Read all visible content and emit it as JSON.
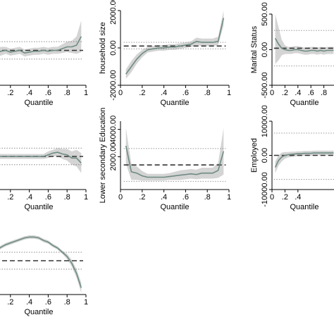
{
  "figure": {
    "xlabel": "Quantile",
    "colors": {
      "estimate": "#6e8b83",
      "band": "#d4d4d4",
      "ols": "#333333",
      "ols_ci": "#888888",
      "frame": "#000000"
    }
  },
  "chart_data": [
    {
      "id": "panel-row1-col1",
      "type": "line",
      "xlabel": "Quantile",
      "ylabel": "",
      "x_ticks": [
        ".2",
        ".4",
        ".6",
        ".8",
        "1"
      ],
      "y_ticks": [],
      "xlim": [
        0,
        1
      ],
      "ylim": [
        -4,
        4
      ],
      "x": [
        0.05,
        0.1,
        0.15,
        0.2,
        0.25,
        0.3,
        0.35,
        0.4,
        0.45,
        0.5,
        0.55,
        0.6,
        0.65,
        0.7,
        0.75,
        0.8,
        0.85,
        0.9,
        0.95
      ],
      "estimate": [
        -0.3,
        -0.1,
        0.0,
        -0.2,
        -0.1,
        0.0,
        -0.3,
        -0.2,
        -0.1,
        -0.1,
        0.0,
        -0.1,
        0.0,
        0.0,
        0.2,
        0.4,
        0.4,
        0.6,
        1.6
      ],
      "ci_lower": [
        -0.8,
        -0.6,
        -0.4,
        -0.6,
        -0.5,
        -0.4,
        -0.7,
        -0.6,
        -0.5,
        -0.5,
        -0.4,
        -0.5,
        -0.4,
        -0.4,
        -0.3,
        -0.2,
        -0.3,
        -0.4,
        -0.2
      ],
      "ci_upper": [
        0.2,
        0.4,
        0.4,
        0.2,
        0.3,
        0.4,
        0.1,
        0.2,
        0.3,
        0.3,
        0.4,
        0.3,
        0.4,
        0.4,
        0.7,
        1.0,
        1.1,
        1.6,
        3.4
      ],
      "ols": 0.0,
      "ols_ci": [
        -1.0,
        1.0
      ]
    },
    {
      "id": "panel-row1-col2",
      "type": "line",
      "xlabel": "Quantile",
      "ylabel": "household size",
      "x_ticks": [
        "0",
        ".2",
        ".4",
        ".6",
        ".8",
        "1"
      ],
      "y_ticks": [
        "-2000.00",
        "0.00",
        "2000.00"
      ],
      "xlim": [
        0,
        1
      ],
      "ylim": [
        -2000,
        2000
      ],
      "x": [
        0.05,
        0.1,
        0.15,
        0.2,
        0.25,
        0.3,
        0.35,
        0.4,
        0.45,
        0.5,
        0.55,
        0.6,
        0.65,
        0.7,
        0.75,
        0.8,
        0.85,
        0.9,
        0.95
      ],
      "estimate": [
        -1400,
        -1000,
        -600,
        -300,
        -100,
        -50,
        0,
        0,
        50,
        50,
        100,
        150,
        200,
        350,
        300,
        300,
        300,
        350,
        1600
      ],
      "ci_lower": [
        -1650,
        -1300,
        -850,
        -500,
        -250,
        -200,
        -150,
        -150,
        -100,
        -100,
        -50,
        0,
        50,
        150,
        100,
        100,
        100,
        150,
        1200
      ],
      "ci_upper": [
        -1150,
        -700,
        -350,
        -100,
        50,
        100,
        150,
        150,
        200,
        200,
        250,
        300,
        350,
        550,
        500,
        500,
        500,
        600,
        2000
      ],
      "ols": 100,
      "ols_ci": [
        -50,
        300
      ]
    },
    {
      "id": "panel-row1-col3",
      "type": "line",
      "xlabel": "Quantile",
      "ylabel": "Marital Status",
      "x_ticks": [
        "0",
        ".2",
        ".4",
        ".6",
        ".8"
      ],
      "y_ticks": [
        "-500.00",
        "0.00",
        "500.00"
      ],
      "xlim": [
        0,
        1
      ],
      "ylim": [
        -500,
        500
      ],
      "x": [
        0.05,
        0.1,
        0.15,
        0.2,
        0.25,
        0.3,
        0.35,
        0.4,
        0.45,
        0.5,
        0.55,
        0.6,
        0.65,
        0.7,
        0.75,
        0.8,
        0.85,
        0.9,
        0.95
      ],
      "estimate": [
        160,
        80,
        20,
        0,
        -10,
        -10,
        0,
        0,
        -10,
        -20,
        -20,
        -10,
        -10,
        -20,
        -10,
        -20,
        -10,
        -10,
        -10
      ],
      "ci_lower": [
        -200,
        -150,
        -80,
        -60,
        -60,
        -60,
        -50,
        -50,
        -60,
        -70,
        -70,
        -60,
        -60,
        -70,
        -60,
        -70,
        -60,
        -60,
        -60
      ],
      "ci_upper": [
        500,
        320,
        140,
        60,
        40,
        40,
        50,
        50,
        40,
        30,
        30,
        40,
        40,
        30,
        40,
        30,
        40,
        40,
        40
      ],
      "ols": 20,
      "ols_ci": [
        -230,
        270
      ]
    },
    {
      "id": "panel-row2-col1",
      "type": "line",
      "xlabel": "Quantile",
      "ylabel": "",
      "x_ticks": [
        ".2",
        ".4",
        ".6",
        ".8",
        "1"
      ],
      "y_ticks": [],
      "xlim": [
        0,
        1
      ],
      "ylim": [
        -4,
        4
      ],
      "x": [
        0.05,
        0.1,
        0.15,
        0.2,
        0.25,
        0.3,
        0.35,
        0.4,
        0.45,
        0.5,
        0.55,
        0.6,
        0.65,
        0.7,
        0.75,
        0.8,
        0.85,
        0.9,
        0.95
      ],
      "estimate": [
        0.0,
        0.0,
        0.0,
        0.0,
        0.0,
        0.0,
        0.0,
        0.0,
        0.0,
        0.0,
        0.0,
        0.2,
        0.4,
        0.5,
        0.3,
        0.2,
        -0.2,
        -0.2,
        -0.8
      ],
      "ci_lower": [
        -0.3,
        -0.3,
        -0.3,
        -0.3,
        -0.3,
        -0.3,
        -0.3,
        -0.3,
        -0.3,
        -0.3,
        -0.3,
        -0.2,
        0.0,
        0.0,
        -0.3,
        -0.5,
        -1.0,
        -1.2,
        -2.0
      ],
      "ci_upper": [
        0.3,
        0.3,
        0.3,
        0.3,
        0.3,
        0.3,
        0.3,
        0.3,
        0.3,
        0.3,
        0.3,
        0.6,
        0.8,
        1.0,
        0.9,
        0.9,
        0.6,
        0.8,
        0.4
      ],
      "ols": 0.0,
      "ols_ci": [
        -1.0,
        1.0
      ]
    },
    {
      "id": "panel-row2-col2",
      "type": "line",
      "xlabel": "Quantile",
      "ylabel": "Lower secondary Education",
      "x_ticks": [
        "0",
        ".2",
        ".4",
        ".6",
        ".8",
        "1"
      ],
      "y_ticks": [
        "2000.00",
        "4000.00"
      ],
      "xlim": [
        0,
        1
      ],
      "ylim": [
        -400,
        4600
      ],
      "x": [
        0.05,
        0.1,
        0.15,
        0.2,
        0.25,
        0.3,
        0.35,
        0.4,
        0.45,
        0.5,
        0.55,
        0.6,
        0.65,
        0.7,
        0.75,
        0.8,
        0.85,
        0.9,
        0.95
      ],
      "estimate": [
        2800,
        900,
        800,
        600,
        500,
        500,
        500,
        500,
        550,
        600,
        650,
        700,
        750,
        700,
        800,
        800,
        800,
        1000,
        2400
      ],
      "ci_lower": [
        1500,
        300,
        300,
        250,
        250,
        250,
        250,
        250,
        300,
        300,
        300,
        350,
        400,
        350,
        400,
        400,
        400,
        450,
        700
      ],
      "ci_upper": [
        4100,
        1500,
        1300,
        950,
        750,
        750,
        750,
        750,
        800,
        900,
        1000,
        1050,
        1100,
        1050,
        1200,
        1200,
        1200,
        1550,
        4100
      ],
      "ols": 1400,
      "ols_ci": [
        200,
        2600
      ]
    },
    {
      "id": "panel-row2-col3",
      "type": "line",
      "xlabel": "Quantile",
      "ylabel": "Employed",
      "x_ticks": [
        "0",
        ".2",
        ".4"
      ],
      "y_ticks": [
        "-10000.00",
        "0.00",
        "10000.00"
      ],
      "xlim": [
        0,
        1
      ],
      "ylim": [
        -10000,
        10000
      ],
      "x": [
        0.05,
        0.1,
        0.15,
        0.2,
        0.25,
        0.3,
        0.35,
        0.4,
        0.45,
        0.5,
        0.55,
        0.6,
        0.65,
        0.7,
        0.75,
        0.8,
        0.85,
        0.9,
        0.95
      ],
      "estimate": [
        -3500,
        -1500,
        -500,
        0,
        200,
        300,
        400,
        500,
        500,
        600,
        600,
        600,
        700,
        700,
        700,
        700,
        700,
        700,
        700
      ],
      "ci_lower": [
        -5200,
        -3000,
        -1800,
        -1000,
        -600,
        -500,
        -300,
        -200,
        -200,
        -100,
        -100,
        -100,
        0,
        0,
        0,
        0,
        0,
        0,
        0
      ],
      "ci_upper": [
        -1800,
        0,
        800,
        1000,
        1000,
        1100,
        1100,
        1200,
        1200,
        1300,
        1300,
        1300,
        1400,
        1400,
        1400,
        1400,
        1400,
        1400,
        1400
      ],
      "ols": 0,
      "ols_ci": [
        -7000,
        6500
      ]
    },
    {
      "id": "panel-row3-col1",
      "type": "line",
      "xlabel": "Quantile",
      "ylabel": "",
      "x_ticks": [
        ".2",
        ".4",
        ".6",
        ".8",
        "1"
      ],
      "y_ticks": [],
      "xlim": [
        0,
        1
      ],
      "ylim": [
        -4,
        4
      ],
      "x": [
        0.05,
        0.1,
        0.15,
        0.2,
        0.25,
        0.3,
        0.35,
        0.4,
        0.45,
        0.5,
        0.55,
        0.6,
        0.65,
        0.7,
        0.75,
        0.8,
        0.85,
        0.9,
        0.95
      ],
      "estimate": [
        1.2,
        1.6,
        1.9,
        2.1,
        2.3,
        2.5,
        2.7,
        2.8,
        2.8,
        2.7,
        2.4,
        2.2,
        1.8,
        1.5,
        1.0,
        0.5,
        -0.3,
        -1.5,
        -3.2
      ],
      "ci_lower": [
        1.0,
        1.4,
        1.7,
        1.9,
        2.1,
        2.3,
        2.5,
        2.6,
        2.6,
        2.5,
        2.2,
        2.0,
        1.6,
        1.3,
        0.8,
        0.2,
        -0.7,
        -2.0,
        -3.8
      ],
      "ci_upper": [
        1.4,
        1.8,
        2.1,
        2.3,
        2.5,
        2.7,
        2.9,
        3.0,
        3.0,
        2.9,
        2.6,
        2.4,
        2.0,
        1.7,
        1.2,
        0.8,
        0.1,
        -1.0,
        -2.6
      ],
      "ols": 0.0,
      "ols_ci": [
        -1.0,
        1.0
      ]
    }
  ]
}
